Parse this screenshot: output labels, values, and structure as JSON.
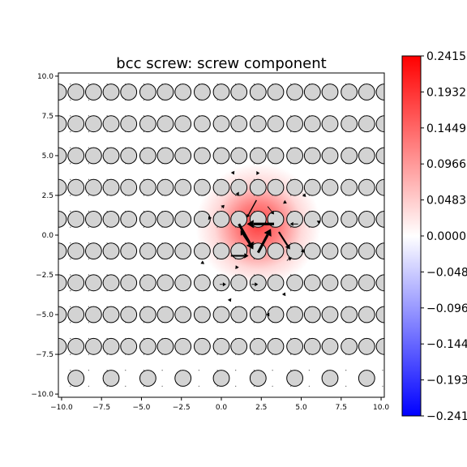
{
  "chart_data": {
    "type": "heatmap",
    "title": "bcc screw: screw component",
    "xlabel": "",
    "ylabel": "",
    "xlim": [
      -10.2,
      10.2
    ],
    "ylim": [
      -10.2,
      10.2
    ],
    "xticks": [
      -10.0,
      -7.5,
      -5.0,
      -2.5,
      0.0,
      2.5,
      5.0,
      7.5,
      10.0
    ],
    "xtick_labels": [
      "−10.0",
      "−7.5",
      "−5.0",
      "−2.5",
      "0.0",
      "2.5",
      "5.0",
      "7.5",
      "10.0"
    ],
    "yticks": [
      -10.0,
      -7.5,
      -5.0,
      -2.5,
      0.0,
      2.5,
      5.0,
      7.5,
      10.0
    ],
    "ytick_labels": [
      "−10.0",
      "−7.5",
      "−5.0",
      "−2.5",
      "0.0",
      "2.5",
      "5.0",
      "7.5",
      "10.0"
    ],
    "grid": false,
    "colormap": {
      "name": "bwr",
      "low": "#0000ff",
      "mid": "#ffffff",
      "high": "#ff0000"
    },
    "colorbar": {
      "min": -0.2415,
      "max": 0.2415,
      "ticks": [
        -0.2415,
        -0.1932,
        -0.1449,
        -0.0966,
        -0.0483,
        0.0,
        0.0483,
        0.0966,
        0.1449,
        0.1932,
        0.2415
      ],
      "tick_labels": [
        "−0.2415",
        "−0.1932",
        "−0.1449",
        "−0.0966",
        "−0.0483",
        "0.0000",
        "0.0483",
        "0.0966",
        "0.1449",
        "0.1932",
        "0.2415"
      ]
    },
    "field": {
      "center": [
        2.3,
        0.6
      ],
      "peak": 0.18,
      "sigma": 1.7
    },
    "atoms": {
      "columns": [
        {
          "x": -9.1,
          "y_start": -9.0
        },
        {
          "x": -8.0,
          "y_start": -7.0
        },
        {
          "x": -6.9,
          "y_start": -9.0
        },
        {
          "x": -5.8,
          "y_start": -7.0
        },
        {
          "x": -4.6,
          "y_start": -9.0
        },
        {
          "x": -3.5,
          "y_start": -7.0
        },
        {
          "x": -2.4,
          "y_start": -9.0
        },
        {
          "x": -1.2,
          "y_start": -7.0
        },
        {
          "x": 0.0,
          "y_start": -9.0
        },
        {
          "x": 1.1,
          "y_start": -7.0
        },
        {
          "x": 2.3,
          "y_start": -9.0
        },
        {
          "x": 3.4,
          "y_start": -7.0
        },
        {
          "x": 4.6,
          "y_start": -9.0
        },
        {
          "x": 5.7,
          "y_start": -7.0
        },
        {
          "x": 6.8,
          "y_start": -9.0
        },
        {
          "x": 8.0,
          "y_start": -7.0
        },
        {
          "x": 9.1,
          "y_start": -9.0
        },
        {
          "x": -10.2,
          "y_start": -7.0
        },
        {
          "x": 10.2,
          "y_start": -7.0
        }
      ],
      "y_step": 2.0,
      "y_max": 10.4,
      "radius": 0.5,
      "fill": "#d3d3d3",
      "edge": "#000000"
    },
    "arrows": [
      {
        "x0": 3.3,
        "y0": 0.7,
        "x1": 1.6,
        "y1": 0.7,
        "w": 3.2
      },
      {
        "x0": 1.1,
        "y0": 0.7,
        "x1": 2.0,
        "y1": -0.9,
        "w": 3.2
      },
      {
        "x0": 2.3,
        "y0": -1.1,
        "x1": 3.1,
        "y1": 0.4,
        "w": 3.2
      },
      {
        "x0": 3.6,
        "y0": 0.2,
        "x1": 4.3,
        "y1": -0.9,
        "w": 2.2
      },
      {
        "x0": 1.8,
        "y0": -0.6,
        "x1": 1.2,
        "y1": 0.3,
        "w": 2.2
      },
      {
        "x0": 0.6,
        "y0": -1.3,
        "x1": 1.7,
        "y1": -1.3,
        "w": 2.0
      },
      {
        "x0": 2.2,
        "y0": 2.2,
        "x1": 1.6,
        "y1": 1.1,
        "w": 1.4
      },
      {
        "x0": 4.8,
        "y0": 0.7,
        "x1": 4.3,
        "y1": 0.7,
        "w": 1.0
      },
      {
        "x0": 2.9,
        "y0": 1.8,
        "x1": 3.3,
        "y1": 1.3,
        "w": 0.9
      },
      {
        "x0": 1.1,
        "y0": 2.6,
        "x1": 0.9,
        "y1": 2.6,
        "w": 0.8
      },
      {
        "x0": 3.9,
        "y0": 2.1,
        "x1": 4.1,
        "y1": 2.0,
        "w": 0.8
      },
      {
        "x0": -0.1,
        "y0": -3.1,
        "x1": 0.3,
        "y1": -3.1,
        "w": 0.8
      },
      {
        "x0": 1.9,
        "y0": -3.1,
        "x1": 2.3,
        "y1": -3.1,
        "w": 0.9
      },
      {
        "x0": 4.1,
        "y0": -1.6,
        "x1": 4.4,
        "y1": -1.4,
        "w": 0.8
      },
      {
        "x0": 1.0,
        "y0": -2.1,
        "x1": 0.9,
        "y1": -1.9,
        "w": 0.7
      },
      {
        "x0": 3.9,
        "y0": -3.8,
        "x1": 4.0,
        "y1": -3.6,
        "w": 0.7
      },
      {
        "x0": 0.5,
        "y0": -4.0,
        "x1": 0.6,
        "y1": -4.2,
        "w": 0.6
      },
      {
        "x0": -0.7,
        "y0": 1.0,
        "x1": -0.8,
        "y1": 1.2,
        "w": 0.6
      },
      {
        "x0": 5.1,
        "y0": 2.6,
        "x1": 5.3,
        "y1": 2.4,
        "w": 0.6
      },
      {
        "x0": 0.7,
        "y0": 4.0,
        "x1": 0.8,
        "y1": 3.8,
        "w": 0.6
      },
      {
        "x0": 5.0,
        "y0": -0.9,
        "x1": 5.2,
        "y1": -1.1,
        "w": 0.6
      },
      {
        "x0": 2.2,
        "y0": 3.9,
        "x1": 2.4,
        "y1": 3.9,
        "w": 0.6
      },
      {
        "x0": 0.0,
        "y0": 1.7,
        "x1": 0.2,
        "y1": 1.9,
        "w": 0.6
      },
      {
        "x0": 3.0,
        "y0": -5.0,
        "x1": 2.8,
        "y1": -5.0,
        "w": 0.5
      },
      {
        "x0": 6.1,
        "y0": 0.9,
        "x1": 6.1,
        "y1": 0.7,
        "w": 0.5
      },
      {
        "x0": -1.1,
        "y0": -1.7,
        "x1": -1.3,
        "y1": -1.8,
        "w": 0.5
      }
    ]
  }
}
